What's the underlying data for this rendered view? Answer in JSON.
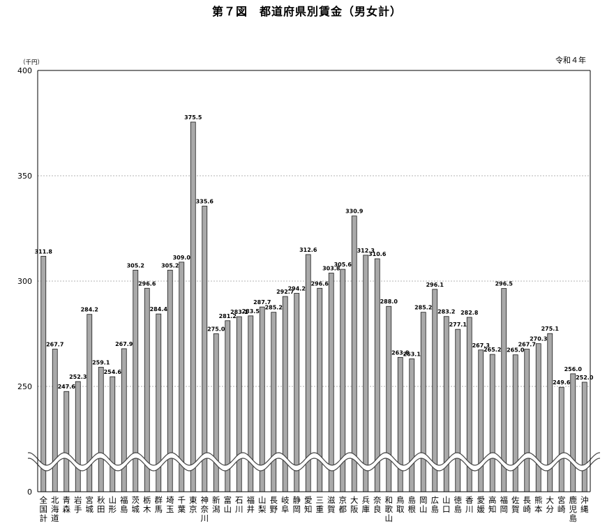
{
  "chart_data": {
    "type": "bar",
    "title": "第７図　都道府県別賃金（男女計）",
    "unit_label": "（千円）",
    "note": "令和４年",
    "ylim": [
      0,
      400
    ],
    "yticks": [
      {
        "value": 0,
        "label": "0"
      },
      {
        "value": 250,
        "label": "250"
      },
      {
        "value": 300,
        "label": "300"
      },
      {
        "value": 350,
        "label": "350"
      },
      {
        "value": 400,
        "label": "400"
      }
    ],
    "axis_break": true,
    "grid": true,
    "categories": [
      "全国計",
      "北海道",
      "青森",
      "岩手",
      "宮城",
      "秋田",
      "山形",
      "福島",
      "茨城",
      "栃木",
      "群馬",
      "埼玉",
      "千葉",
      "東京",
      "神奈川",
      "新潟",
      "富山",
      "石川",
      "福井",
      "山梨",
      "長野",
      "岐阜",
      "静岡",
      "愛知",
      "三重",
      "滋賀",
      "京都",
      "大阪",
      "兵庫",
      "奈良",
      "和歌山",
      "鳥取",
      "島根",
      "岡山",
      "広島",
      "山口",
      "徳島",
      "香川",
      "愛媛",
      "高知",
      "福岡",
      "佐賀",
      "長崎",
      "熊本",
      "大分",
      "宮崎",
      "鹿児島",
      "沖縄"
    ],
    "values": [
      311.8,
      267.7,
      247.6,
      252.3,
      284.2,
      259.1,
      254.6,
      267.9,
      305.2,
      296.6,
      284.4,
      305.2,
      309.0,
      375.5,
      335.6,
      275.0,
      281.2,
      283.1,
      283.5,
      287.7,
      285.2,
      292.7,
      294.2,
      312.6,
      296.6,
      303.8,
      305.6,
      330.9,
      312.3,
      310.6,
      288.0,
      263.8,
      263.1,
      285.2,
      296.1,
      283.2,
      277.1,
      282.8,
      267.3,
      265.2,
      296.5,
      265.0,
      267.7,
      270.3,
      275.1,
      249.6,
      256.0,
      252.0
    ],
    "value_labels": [
      "311.8",
      "267.7",
      "247.6",
      "252.3",
      "284.2",
      "259.1",
      "254.6",
      "267.9",
      "305.2",
      "296.6",
      "284.4",
      "305.2",
      "309.0",
      "375.5",
      "335.6",
      "275.0",
      "281.2",
      "283.1",
      "283.5",
      "287.7",
      "285.2",
      "292.7",
      "294.2",
      "312.6",
      "296.6",
      "303.8",
      "305.6",
      "330.9",
      "312.3",
      "310.6",
      "288.0",
      "263.8",
      "263.1",
      "285.2",
      "296.1",
      "283.2",
      "277.1",
      "282.8",
      "267.3",
      "265.2",
      "296.5",
      "265.0",
      "267.7",
      "270.3",
      "275.1",
      "249.6",
      "256.0",
      "252.0"
    ],
    "colors": {
      "bar": "#a9a9a9",
      "bar_stroke": "#1a1a1a",
      "grid": "#9a9a9a",
      "axis": "#000000"
    }
  }
}
